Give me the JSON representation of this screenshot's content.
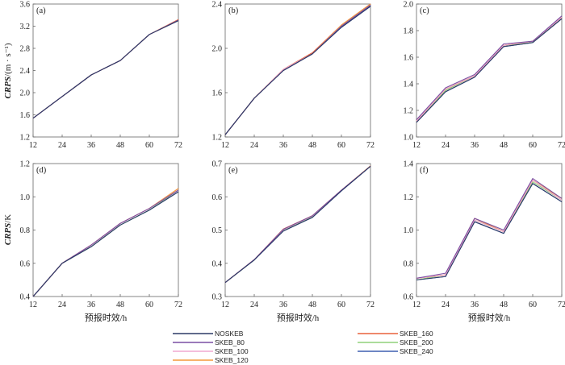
{
  "figure": {
    "ylabel_top": "CRPS/(m · s⁻¹)",
    "ylabel_top_italic": "CRPS",
    "ylabel_top_unit": "/(m · s⁻¹)",
    "ylabel_bottom_italic": "CRPS",
    "ylabel_bottom_unit": "/K",
    "xlabel": "预报时效/h"
  },
  "legend": {
    "entries": [
      {
        "name": "NOSKEB",
        "color": "#2b3a67"
      },
      {
        "name": "SKEB_80",
        "color": "#7a4fa3"
      },
      {
        "name": "SKEB_100",
        "color": "#f0a8d0"
      },
      {
        "name": "SKEB_120",
        "color": "#f39a3b"
      },
      {
        "name": "SKEB_160",
        "color": "#e8603c"
      },
      {
        "name": "SKEB_200",
        "color": "#8fd07a"
      },
      {
        "name": "SKEB_240",
        "color": "#3f5fb0"
      }
    ]
  },
  "chart_data": [
    {
      "type": "line",
      "label": "(a)",
      "x": [
        12,
        24,
        36,
        48,
        60,
        72
      ],
      "ylim": [
        1.2,
        3.6
      ],
      "yticks": [
        "1.2",
        "1.6",
        "2.0",
        "2.4",
        "2.8",
        "3.2",
        "3.6"
      ],
      "series": [
        {
          "name": "NOSKEB",
          "values": [
            1.54,
            1.93,
            2.32,
            2.58,
            3.05,
            3.3
          ]
        },
        {
          "name": "SKEB_80",
          "values": [
            1.54,
            1.93,
            2.32,
            2.58,
            3.05,
            3.31
          ]
        },
        {
          "name": "SKEB_100",
          "values": [
            1.54,
            1.93,
            2.32,
            2.58,
            3.05,
            3.3
          ]
        },
        {
          "name": "SKEB_120",
          "values": [
            1.54,
            1.93,
            2.32,
            2.58,
            3.05,
            3.31
          ]
        },
        {
          "name": "SKEB_160",
          "values": [
            1.54,
            1.93,
            2.32,
            2.58,
            3.05,
            3.32
          ]
        },
        {
          "name": "SKEB_200",
          "values": [
            1.54,
            1.93,
            2.32,
            2.58,
            3.05,
            3.3
          ]
        },
        {
          "name": "SKEB_240",
          "values": [
            1.54,
            1.93,
            2.32,
            2.58,
            3.05,
            3.3
          ]
        }
      ]
    },
    {
      "type": "line",
      "label": "(b)",
      "x": [
        12,
        24,
        36,
        48,
        60,
        72
      ],
      "ylim": [
        1.2,
        2.4
      ],
      "yticks": [
        "1.2",
        "1.6",
        "2.0",
        "2.4"
      ],
      "series": [
        {
          "name": "NOSKEB",
          "values": [
            1.22,
            1.55,
            1.8,
            1.95,
            2.19,
            2.38
          ]
        },
        {
          "name": "SKEB_80",
          "values": [
            1.22,
            1.55,
            1.8,
            1.95,
            2.2,
            2.39
          ]
        },
        {
          "name": "SKEB_100",
          "values": [
            1.22,
            1.55,
            1.81,
            1.95,
            2.2,
            2.39
          ]
        },
        {
          "name": "SKEB_120",
          "values": [
            1.22,
            1.55,
            1.81,
            1.95,
            2.21,
            2.4
          ]
        },
        {
          "name": "SKEB_160",
          "values": [
            1.22,
            1.55,
            1.81,
            1.96,
            2.21,
            2.4
          ]
        },
        {
          "name": "SKEB_200",
          "values": [
            1.22,
            1.55,
            1.8,
            1.95,
            2.2,
            2.39
          ]
        },
        {
          "name": "SKEB_240",
          "values": [
            1.22,
            1.55,
            1.8,
            1.95,
            2.19,
            2.38
          ]
        }
      ]
    },
    {
      "type": "line",
      "label": "(c)",
      "x": [
        12,
        24,
        36,
        48,
        60,
        72
      ],
      "ylim": [
        1.0,
        2.0
      ],
      "yticks": [
        "1.0",
        "1.2",
        "1.4",
        "1.6",
        "1.8",
        "2.0"
      ],
      "series": [
        {
          "name": "NOSKEB",
          "values": [
            1.11,
            1.34,
            1.45,
            1.68,
            1.71,
            1.89
          ]
        },
        {
          "name": "SKEB_80",
          "values": [
            1.13,
            1.37,
            1.47,
            1.7,
            1.72,
            1.91
          ]
        },
        {
          "name": "SKEB_100",
          "values": [
            1.12,
            1.36,
            1.46,
            1.69,
            1.72,
            1.9
          ]
        },
        {
          "name": "SKEB_120",
          "values": [
            1.12,
            1.36,
            1.46,
            1.69,
            1.72,
            1.9
          ]
        },
        {
          "name": "SKEB_160",
          "values": [
            1.12,
            1.36,
            1.46,
            1.69,
            1.72,
            1.9
          ]
        },
        {
          "name": "SKEB_200",
          "values": [
            1.12,
            1.35,
            1.46,
            1.69,
            1.71,
            1.9
          ]
        },
        {
          "name": "SKEB_240",
          "values": [
            1.11,
            1.34,
            1.45,
            1.68,
            1.71,
            1.89
          ]
        }
      ]
    },
    {
      "type": "line",
      "label": "(d)",
      "x": [
        12,
        24,
        36,
        48,
        60,
        72
      ],
      "ylim": [
        0.4,
        1.2
      ],
      "yticks": [
        "0.4",
        "0.6",
        "0.8",
        "1.0",
        "1.2"
      ],
      "series": [
        {
          "name": "NOSKEB",
          "values": [
            0.4,
            0.6,
            0.7,
            0.83,
            0.92,
            1.03
          ]
        },
        {
          "name": "SKEB_80",
          "values": [
            0.4,
            0.6,
            0.71,
            0.84,
            0.93,
            1.04
          ]
        },
        {
          "name": "SKEB_100",
          "values": [
            0.4,
            0.6,
            0.71,
            0.84,
            0.93,
            1.04
          ]
        },
        {
          "name": "SKEB_120",
          "values": [
            0.4,
            0.6,
            0.71,
            0.84,
            0.93,
            1.05
          ]
        },
        {
          "name": "SKEB_160",
          "values": [
            0.4,
            0.6,
            0.71,
            0.84,
            0.93,
            1.05
          ]
        },
        {
          "name": "SKEB_200",
          "values": [
            0.4,
            0.6,
            0.7,
            0.83,
            0.92,
            1.04
          ]
        },
        {
          "name": "SKEB_240",
          "values": [
            0.4,
            0.6,
            0.7,
            0.83,
            0.92,
            1.03
          ]
        }
      ]
    },
    {
      "type": "line",
      "label": "(e)",
      "x": [
        12,
        24,
        36,
        48,
        60,
        72
      ],
      "ylim": [
        0.3,
        0.7
      ],
      "yticks": [
        "0.3",
        "0.4",
        "0.5",
        "0.6",
        "0.7"
      ],
      "series": [
        {
          "name": "NOSKEB",
          "values": [
            0.342,
            0.41,
            0.497,
            0.538,
            0.618,
            0.692
          ]
        },
        {
          "name": "SKEB_80",
          "values": [
            0.342,
            0.411,
            0.502,
            0.543,
            0.62,
            0.692
          ]
        },
        {
          "name": "SKEB_100",
          "values": [
            0.342,
            0.411,
            0.501,
            0.542,
            0.62,
            0.692
          ]
        },
        {
          "name": "SKEB_120",
          "values": [
            0.342,
            0.411,
            0.502,
            0.543,
            0.62,
            0.693
          ]
        },
        {
          "name": "SKEB_160",
          "values": [
            0.342,
            0.411,
            0.503,
            0.543,
            0.62,
            0.693
          ]
        },
        {
          "name": "SKEB_200",
          "values": [
            0.342,
            0.41,
            0.5,
            0.54,
            0.619,
            0.692
          ]
        },
        {
          "name": "SKEB_240",
          "values": [
            0.342,
            0.41,
            0.497,
            0.538,
            0.618,
            0.692
          ]
        }
      ]
    },
    {
      "type": "line",
      "label": "(f)",
      "x": [
        12,
        24,
        36,
        48,
        60,
        72
      ],
      "ylim": [
        0.6,
        1.4
      ],
      "yticks": [
        "0.6",
        "0.8",
        "1.0",
        "1.2",
        "1.4"
      ],
      "series": [
        {
          "name": "NOSKEB",
          "values": [
            0.7,
            0.72,
            1.05,
            0.98,
            1.28,
            1.17
          ]
        },
        {
          "name": "SKEB_80",
          "values": [
            0.71,
            0.74,
            1.07,
            1.0,
            1.31,
            1.19
          ]
        },
        {
          "name": "SKEB_100",
          "values": [
            0.71,
            0.73,
            1.06,
            0.99,
            1.3,
            1.18
          ]
        },
        {
          "name": "SKEB_120",
          "values": [
            0.71,
            0.73,
            1.07,
            0.99,
            1.3,
            1.19
          ]
        },
        {
          "name": "SKEB_160",
          "values": [
            0.71,
            0.73,
            1.07,
            0.99,
            1.3,
            1.19
          ]
        },
        {
          "name": "SKEB_200",
          "values": [
            0.7,
            0.73,
            1.06,
            0.99,
            1.29,
            1.18
          ]
        },
        {
          "name": "SKEB_240",
          "values": [
            0.7,
            0.72,
            1.05,
            0.98,
            1.28,
            1.17
          ]
        }
      ]
    }
  ]
}
